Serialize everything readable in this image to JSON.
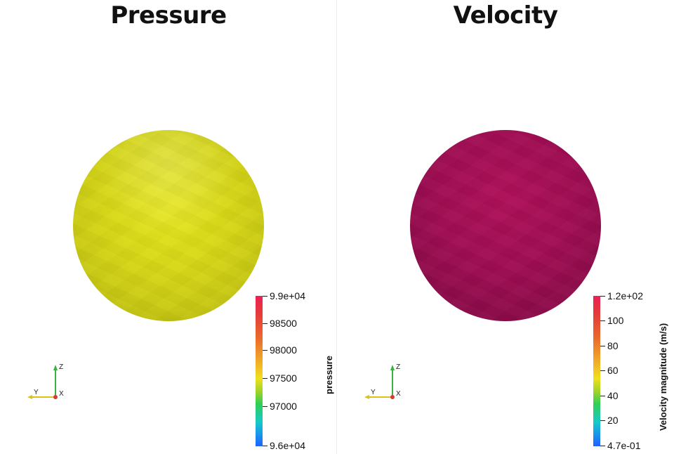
{
  "panels": {
    "left": {
      "title": "Pressure",
      "sphere_color": "#d6d618",
      "colorbar": {
        "title": "pressure",
        "ticks": [
          "9.9e+04",
          "98500",
          "98000",
          "97500",
          "97000",
          "9.6e+04"
        ]
      }
    },
    "right": {
      "title": "Velocity",
      "sphere_color": "#a00e53",
      "colorbar": {
        "title": "Velocity magnitude (m/s)",
        "ticks": [
          "1.2e+02",
          "100",
          "80",
          "60",
          "40",
          "20",
          "4.7e-01"
        ]
      }
    }
  },
  "axes_labels": {
    "z": "Z",
    "y": "Y",
    "x": "X"
  },
  "colors": {
    "z_axis": "#3cb043",
    "y_axis": "#d9c21a",
    "x_axis": "#d83a2e"
  }
}
